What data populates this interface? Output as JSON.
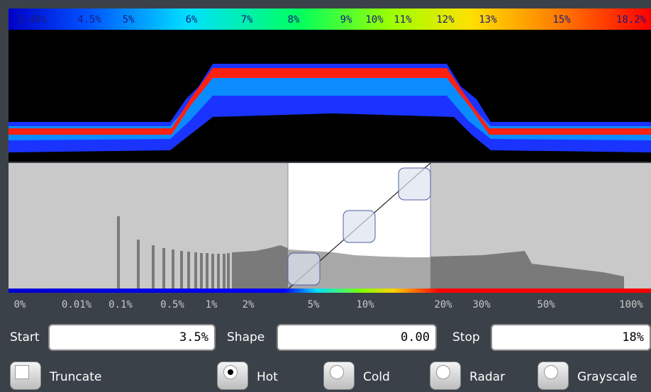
{
  "color_bar": {
    "labels": [
      "3.48%",
      "4.5%",
      "5%",
      "6%",
      "7%",
      "8%",
      "9%",
      "10%",
      "11%",
      "12%",
      "13%",
      "15%",
      "18.2%"
    ]
  },
  "histogram_scale": {
    "labels": [
      "0%",
      "0.01%",
      "0.1%",
      "0.5%",
      "1%",
      "2%",
      "5%",
      "10%",
      "20%",
      "30%",
      "50%",
      "100%"
    ]
  },
  "controls": {
    "start": {
      "label": "Start",
      "value": "3.5%"
    },
    "shape": {
      "label": "Shape",
      "value": "0.00"
    },
    "stop": {
      "label": "Stop",
      "value": "18%"
    }
  },
  "options": {
    "truncate": "Truncate",
    "schemes": [
      "Hot",
      "Cold",
      "Radar",
      "Grayscale"
    ]
  }
}
